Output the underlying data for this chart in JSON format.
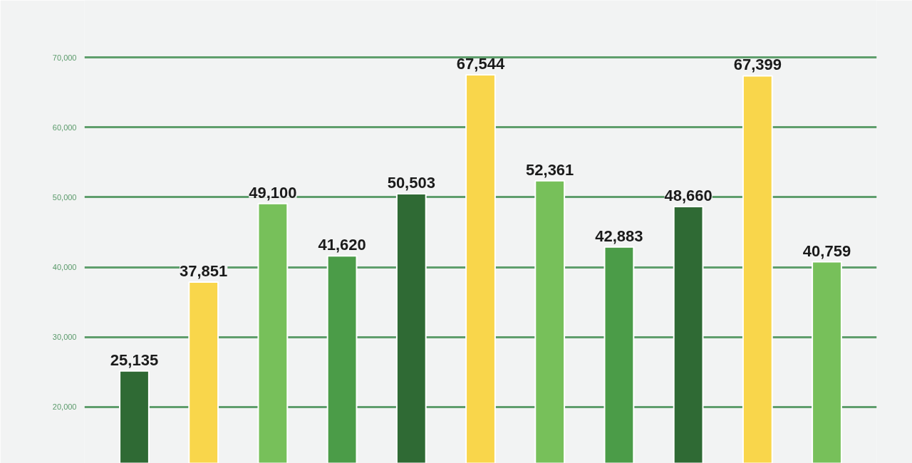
{
  "chart_data": {
    "type": "bar",
    "categories": [
      null,
      null,
      null,
      null,
      null,
      null,
      null,
      null,
      null,
      null,
      null
    ],
    "values": [
      25135,
      37851,
      49100,
      41620,
      50503,
      67544,
      52361,
      42883,
      48660,
      67399,
      40759
    ],
    "colors": [
      "#2f6a34",
      "#f9d64b",
      "#77c05a",
      "#4b9c48",
      "#2f6a34",
      "#f9d64b",
      "#77c05a",
      "#4b9c48",
      "#2f6a34",
      "#f9d64b",
      "#77c05a"
    ],
    "ylim": [
      11900,
      78200
    ],
    "yticks": [
      {
        "value": 20000,
        "label": "20,000"
      },
      {
        "value": 30000,
        "label": "30,000"
      },
      {
        "value": 40000,
        "label": "40,000"
      },
      {
        "value": 50000,
        "label": "50,000"
      },
      {
        "value": 60000,
        "label": "60,000"
      },
      {
        "value": 70000,
        "label": "70,000"
      }
    ],
    "value_labels": [
      "25,135",
      "37,851",
      "49,100",
      "41,620",
      "50,503",
      "67,544",
      "52,361",
      "42,883",
      "48,660",
      "67,399",
      "40,759"
    ],
    "grid": "y",
    "tick_labels": "y"
  }
}
